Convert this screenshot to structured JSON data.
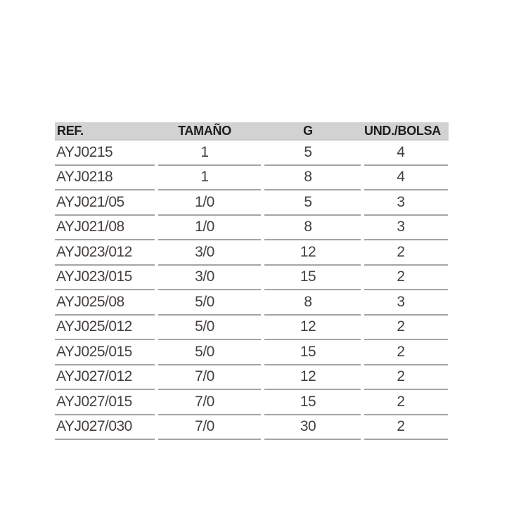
{
  "page": {
    "background": "#ffffff"
  },
  "table": {
    "columns": [
      {
        "label": "REF.",
        "align": "left"
      },
      {
        "label": "TAMAÑO",
        "align": "center"
      },
      {
        "label": "G",
        "align": "center"
      },
      {
        "label": "UND./BOLSA",
        "align": "center"
      }
    ],
    "rows": [
      [
        "AYJ0215",
        "1",
        "5",
        "4"
      ],
      [
        "AYJ0218",
        "1",
        "8",
        "4"
      ],
      [
        "AYJ021/05",
        "1/0",
        "5",
        "3"
      ],
      [
        "AYJ021/08",
        "1/0",
        "8",
        "3"
      ],
      [
        "AYJ023/012",
        "3/0",
        "12",
        "2"
      ],
      [
        "AYJ023/015",
        "3/0",
        "15",
        "2"
      ],
      [
        "AYJ025/08",
        "5/0",
        "8",
        "3"
      ],
      [
        "AYJ025/012",
        "5/0",
        "12",
        "2"
      ],
      [
        "AYJ025/015",
        "5/0",
        "15",
        "2"
      ],
      [
        "AYJ027/012",
        "7/0",
        "12",
        "2"
      ],
      [
        "AYJ027/015",
        "7/0",
        "15",
        "2"
      ],
      [
        "AYJ027/030",
        "7/0",
        "30",
        "2"
      ]
    ],
    "colors": {
      "header_bg": "#d2d2d2",
      "header_text": "#1d1d1d",
      "row_text": "#45403d",
      "separator": "#a5a5a5",
      "header_underline": "#c9c9c9"
    }
  }
}
